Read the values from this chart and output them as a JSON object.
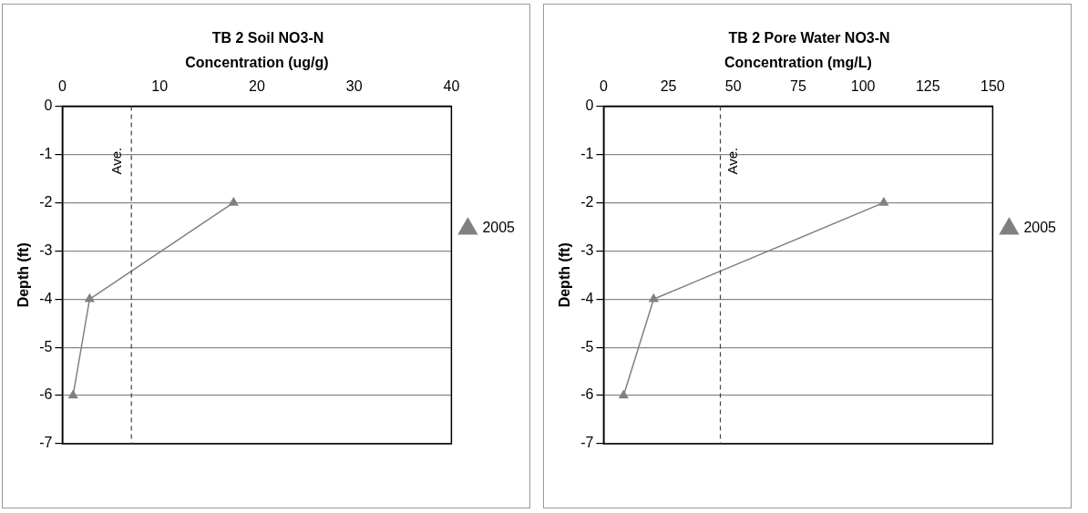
{
  "chart_data": [
    {
      "type": "line",
      "title": "TB 2 Soil NO3-N",
      "xlabel": "Concentration (ug/g)",
      "ylabel": "Depth (ft)",
      "series": [
        {
          "name": "2005",
          "color": "#808080",
          "x": [
            17.6,
            2.8,
            1.1
          ],
          "values": [
            -2,
            -4,
            -6
          ]
        }
      ],
      "xlim": [
        0,
        40
      ],
      "xticks": [
        0,
        10,
        20,
        30,
        40
      ],
      "ylim": [
        -7,
        0
      ],
      "yticks": [
        -7,
        -6,
        -5,
        -4,
        -3,
        -2,
        -1,
        0
      ],
      "ref_lines": [
        {
          "axis": "x",
          "value": 7.1,
          "label": "Ave.",
          "line_style": "dashed",
          "color": "#404040"
        }
      ],
      "grid": "y",
      "legend": "right",
      "marker": "triangle",
      "line_style": "solid"
    },
    {
      "type": "line",
      "title": "TB 2 Pore Water NO3-N",
      "xlabel": "Concentration (mg/L)",
      "ylabel": "Depth (ft)",
      "series": [
        {
          "name": "2005",
          "color": "#808080",
          "x": [
            108,
            19.3,
            7.7
          ],
          "values": [
            -2,
            -4,
            -6
          ]
        }
      ],
      "xlim": [
        0,
        150
      ],
      "xticks": [
        0,
        25,
        50,
        75,
        100,
        125,
        150
      ],
      "ylim": [
        -7,
        0
      ],
      "yticks": [
        -7,
        -6,
        -5,
        -4,
        -3,
        -2,
        -1,
        0
      ],
      "ref_lines": [
        {
          "axis": "x",
          "value": 45,
          "label": "Ave.",
          "line_style": "dashed",
          "color": "#404040"
        }
      ],
      "grid": "y",
      "legend": "right",
      "marker": "triangle",
      "line_style": "solid"
    }
  ]
}
